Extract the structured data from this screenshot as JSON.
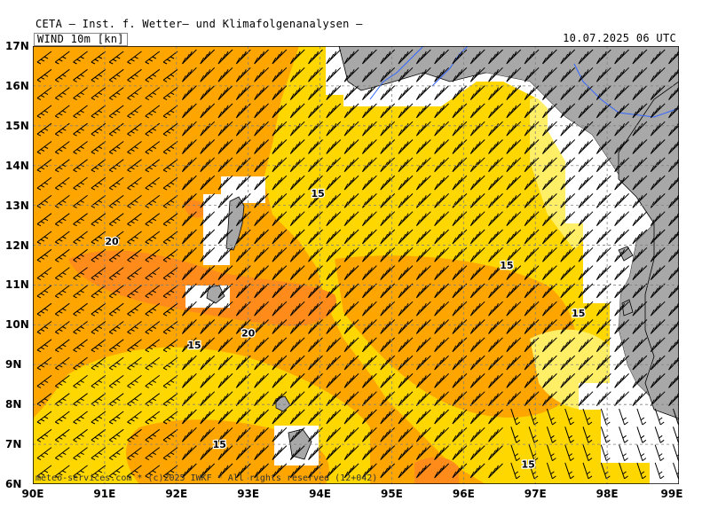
{
  "header": {
    "title": "CETA — Inst. f. Wetter— und Klimafolgenanalysen —",
    "parameter": "WIND 10m [kn]",
    "valid_time": "10.07.2025 06 UTC"
  },
  "footer": "meteo-services.com * (c)2025 IWKF * All rights reserved (12+042)",
  "lat_labels": [
    "17N",
    "16N",
    "15N",
    "14N",
    "13N",
    "12N",
    "11N",
    "10N",
    "9N",
    "8N",
    "7N",
    "6N"
  ],
  "lon_labels": [
    "90E",
    "91E",
    "92E",
    "93E",
    "94E",
    "95E",
    "96E",
    "97E",
    "98E",
    "99E"
  ],
  "contour_labels": [
    {
      "text": "15",
      "lon": 93.97,
      "lat": 13.3
    },
    {
      "text": "20",
      "lon": 91.1,
      "lat": 12.1
    },
    {
      "text": "15",
      "lon": 96.6,
      "lat": 11.5
    },
    {
      "text": "15",
      "lon": 97.6,
      "lat": 10.3
    },
    {
      "text": "15",
      "lon": 92.25,
      "lat": 9.5
    },
    {
      "text": "20",
      "lon": 93.0,
      "lat": 9.8
    },
    {
      "text": "15",
      "lon": 92.6,
      "lat": 7.0
    },
    {
      "text": "15",
      "lon": 96.9,
      "lat": 6.5
    }
  ],
  "legend_colors": {
    "land": "#a8a8a8",
    "wind_15_20": "#ffd700",
    "wind_20_25": "#ffa500",
    "wind_25_30": "#ff8800",
    "wind_10_15": "#ffef66",
    "wind_5_10": "#ccffcc",
    "river": "#3366ff"
  }
}
